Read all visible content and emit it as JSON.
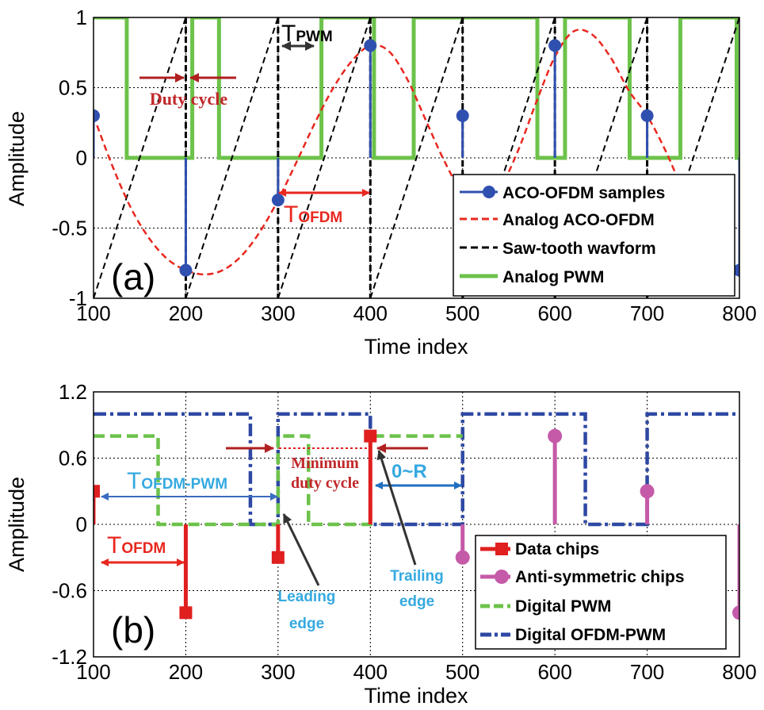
{
  "colors": {
    "aco_samples": "#3050b0",
    "analog_aco": "#e8271f",
    "sawtooth": "#000000",
    "analog_pwm": "#6cc24a",
    "data_chips": "#e01f1f",
    "anti_chips": "#c55aa8",
    "digital_pwm": "#6cc24a",
    "digital_ofdm_pwm": "#2e48a3",
    "ann_red": "#c0282b",
    "ann_blue": "#35a9e0",
    "arrow_dark": "#333333"
  },
  "chart_data": [
    {
      "type": "line",
      "panel_label": "(a)",
      "xlabel": "Time index",
      "ylabel": "Amplitude",
      "xlim": [
        100,
        800
      ],
      "ylim": [
        -1,
        1
      ],
      "xticks": [
        100,
        200,
        300,
        400,
        500,
        600,
        700,
        800
      ],
      "yticks": [
        -1,
        -0.5,
        0,
        0.5,
        1
      ],
      "ytick_labels": [
        "-1",
        "-0.5",
        "0",
        "0.5",
        "1"
      ],
      "grid": true,
      "legend_position": "bottom-right",
      "legend": [
        "ACO-OFDM samples",
        "Analog ACO-OFDM",
        "Saw-tooth wavform",
        "Analog PWM"
      ],
      "series": [
        {
          "name": "ACO-OFDM samples",
          "style": "stem",
          "x": [
            100,
            200,
            300,
            400,
            500,
            600,
            700,
            800
          ],
          "y": [
            0.3,
            -0.8,
            -0.3,
            0.8,
            0.3,
            0.8,
            0.3,
            -0.8
          ]
        },
        {
          "name": "Analog ACO-OFDM",
          "style": "dashed",
          "x": [
            100,
            120,
            140,
            160,
            180,
            200,
            220,
            240,
            260,
            280,
            300,
            320,
            340,
            360,
            380,
            400,
            420,
            440,
            460,
            480,
            500,
            520,
            540,
            560,
            580,
            600,
            620,
            640,
            660,
            680,
            700,
            720,
            740,
            760,
            780,
            800
          ],
          "y": [
            0.3,
            -0.05,
            -0.35,
            -0.57,
            -0.72,
            -0.8,
            -0.83,
            -0.8,
            -0.7,
            -0.53,
            -0.3,
            -0.03,
            0.25,
            0.5,
            0.69,
            0.8,
            0.76,
            0.56,
            0.27,
            -0.02,
            -0.25,
            -0.33,
            -0.22,
            0.05,
            0.4,
            0.72,
            0.9,
            0.88,
            0.72,
            0.48,
            0.3,
            0.05,
            -0.25,
            -0.5,
            -0.68,
            -0.8
          ]
        },
        {
          "name": "Saw-tooth wavform",
          "style": "dashed",
          "x": [
            100,
            200,
            200,
            300,
            300,
            400,
            400,
            500,
            500,
            600,
            600,
            700,
            700,
            800
          ],
          "y": [
            -1,
            1,
            -1,
            1,
            -1,
            1,
            -1,
            1,
            -1,
            1,
            -1,
            1,
            -1,
            1
          ]
        },
        {
          "name": "Analog PWM",
          "style": "solid",
          "x": [
            100,
            136,
            136,
            207,
            207,
            236,
            236,
            347,
            347,
            404,
            404,
            447,
            447,
            581,
            581,
            611,
            611,
            681,
            681,
            736,
            736,
            797,
            797,
            800
          ],
          "y": [
            1,
            1,
            0,
            0,
            1,
            1,
            0,
            0,
            1,
            1,
            0,
            0,
            1,
            1,
            0,
            0,
            1,
            1,
            0,
            0,
            1,
            1,
            0,
            0
          ]
        }
      ],
      "annotations": {
        "duty_cycle": "Duty cycle",
        "t_pwm_main": "T",
        "t_pwm_sub": "PWM",
        "t_ofdm_main": "T",
        "t_ofdm_sub": "OFDM"
      }
    },
    {
      "type": "line",
      "panel_label": "(b)",
      "xlabel": "Time index",
      "ylabel": "Amplitude",
      "xlim": [
        100,
        800
      ],
      "ylim": [
        -1.2,
        1.2
      ],
      "xticks": [
        100,
        200,
        300,
        400,
        500,
        600,
        700,
        800
      ],
      "yticks": [
        -1.2,
        -0.6,
        0,
        0.6,
        1.2
      ],
      "ytick_labels": [
        "-1.2",
        "-0.6",
        "0",
        "0.6",
        "1.2"
      ],
      "grid": true,
      "legend_position": "bottom-right",
      "legend": [
        "Data chips",
        "Anti-symmetric chips",
        "Digital PWM",
        "Digital OFDM-PWM"
      ],
      "series": [
        {
          "name": "Data chips",
          "style": "stem-square",
          "x": [
            100,
            200,
            300,
            400
          ],
          "y": [
            0.3,
            -0.8,
            -0.3,
            0.8
          ]
        },
        {
          "name": "Anti-symmetric chips",
          "style": "stem-circle",
          "x": [
            500,
            600,
            700,
            800
          ],
          "y": [
            -0.3,
            0.8,
            0.3,
            -0.8
          ]
        },
        {
          "name": "Digital PWM",
          "style": "dashed",
          "x": [
            100,
            170,
            170,
            300,
            300,
            333,
            333,
            400,
            400,
            500
          ],
          "y": [
            0.8,
            0.8,
            0,
            0,
            0.8,
            0.8,
            0,
            0,
            0.8,
            0.8
          ]
        },
        {
          "name": "Digital OFDM-PWM",
          "style": "dash-dot",
          "x": [
            100,
            270,
            270,
            300,
            300,
            400,
            400,
            500,
            500,
            633,
            633,
            700,
            700,
            800
          ],
          "y": [
            1,
            1,
            0,
            0,
            1,
            1,
            0,
            0,
            1,
            1,
            0,
            0,
            1,
            1
          ]
        }
      ],
      "annotations": {
        "t_ofdm_pwm_main": "T",
        "t_ofdm_pwm_sub": "OFDM-PWM",
        "t_ofdm_main": "T",
        "t_ofdm_sub": "OFDM",
        "minimum_duty_line1": "Minimum",
        "minimum_duty_line2": "duty cycle",
        "zero_to_r": "0~R",
        "leading_line1": "Leading",
        "leading_line2": "edge",
        "trailing_line1": "Trailing",
        "trailing_line2": "edge"
      }
    }
  ]
}
